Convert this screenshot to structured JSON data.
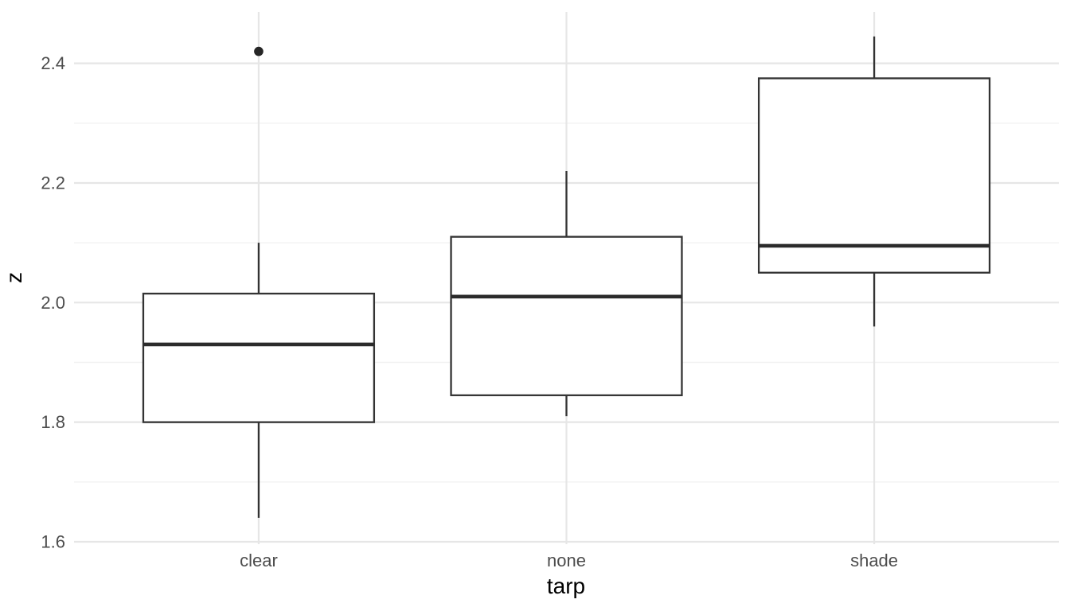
{
  "chart_data": {
    "type": "boxplot",
    "title": "",
    "xlabel": "tarp",
    "ylabel": "z",
    "categories": [
      "clear",
      "none",
      "shade"
    ],
    "series": [
      {
        "category": "clear",
        "whisker_low": 1.64,
        "q1": 1.8,
        "median": 1.93,
        "q3": 2.015,
        "whisker_high": 2.1,
        "outliers": [
          2.42
        ]
      },
      {
        "category": "none",
        "whisker_low": 1.81,
        "q1": 1.845,
        "median": 2.01,
        "q3": 2.11,
        "whisker_high": 2.22,
        "outliers": []
      },
      {
        "category": "shade",
        "whisker_low": 1.96,
        "q1": 2.05,
        "median": 2.095,
        "q3": 2.375,
        "whisker_high": 2.445,
        "outliers": []
      }
    ],
    "y_ticks": [
      {
        "label": "1.6",
        "value": 1.6
      },
      {
        "label": "1.8",
        "value": 1.8
      },
      {
        "label": "2.0",
        "value": 2.0
      },
      {
        "label": "2.2",
        "value": 2.2
      },
      {
        "label": "2.4",
        "value": 2.4
      }
    ],
    "y_minor_ticks": [
      1.7,
      1.9,
      2.1,
      2.3
    ],
    "ylim": [
      1.596,
      2.486
    ],
    "grid": "horizontal major+minor, vertical major at categories",
    "legend_position": "none",
    "colors": {
      "background": "#ffffff",
      "box_stroke": "#333333",
      "box_fill": "#ffffff",
      "median_stroke": "#2b2b2b",
      "outlier_fill": "#262626",
      "grid_major": "#e6e6e6",
      "grid_minor": "#f2f2f2",
      "tick_label": "#4d4d4d",
      "axis_title": "#000000"
    }
  }
}
